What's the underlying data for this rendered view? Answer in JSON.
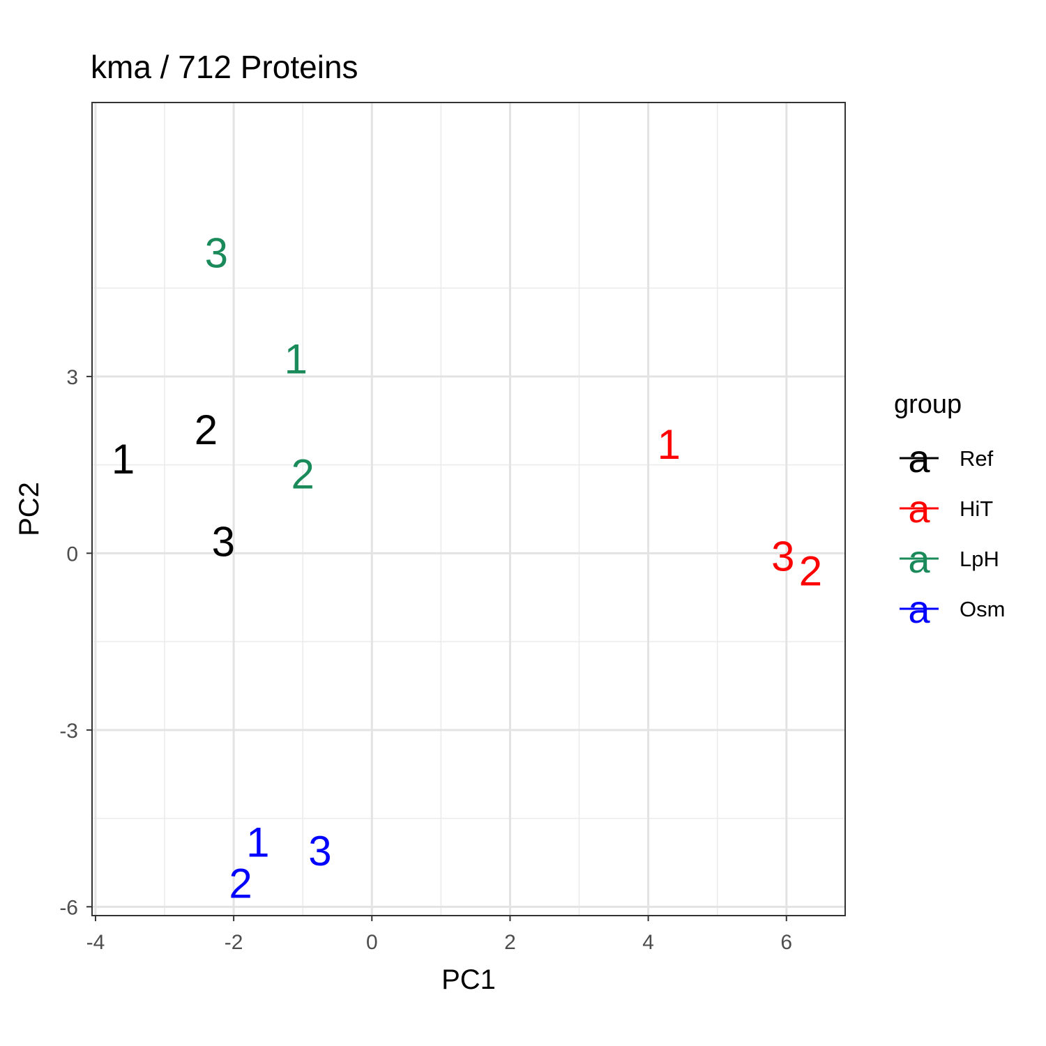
{
  "chart_data": {
    "type": "scatter",
    "title": "kma /  712  Proteins",
    "xlabel": "PC1",
    "ylabel": "PC2",
    "xlim": [
      -4.05,
      6.85
    ],
    "ylim": [
      -6.15,
      7.65
    ],
    "x_major_ticks": [
      -4,
      -2,
      0,
      2,
      4,
      6
    ],
    "x_minor_ticks": [
      -3,
      -1,
      1,
      3,
      5
    ],
    "y_major_ticks": [
      -6,
      -3,
      0,
      3
    ],
    "y_minor_ticks": [
      -4.5,
      -1.5,
      1.5,
      4.5
    ],
    "x_tick_labels": [
      "-4",
      "-2",
      "0",
      "2",
      "4",
      "6"
    ],
    "y_tick_labels": [
      "-6",
      "-3",
      "0",
      "3"
    ],
    "grid": true,
    "legend": {
      "title": "group",
      "position": "right",
      "key_glyph": "a"
    },
    "series": [
      {
        "name": "Ref",
        "color": "#000000",
        "points": [
          {
            "label": "1",
            "x": -3.6,
            "y": 1.6
          },
          {
            "label": "2",
            "x": -2.4,
            "y": 2.1
          },
          {
            "label": "3",
            "x": -2.15,
            "y": 0.2
          }
        ]
      },
      {
        "name": "HiT",
        "color": "#ff0000",
        "points": [
          {
            "label": "1",
            "x": 4.3,
            "y": 1.85
          },
          {
            "label": "3",
            "x": 5.95,
            "y": -0.05
          },
          {
            "label": "2",
            "x": 6.35,
            "y": -0.3
          }
        ]
      },
      {
        "name": "LpH",
        "color": "#1b8a5a",
        "points": [
          {
            "label": "3",
            "x": -2.25,
            "y": 5.1
          },
          {
            "label": "1",
            "x": -1.1,
            "y": 3.3
          },
          {
            "label": "2",
            "x": -1.0,
            "y": 1.35
          }
        ]
      },
      {
        "name": "Osm",
        "color": "#0000ff",
        "points": [
          {
            "label": "1",
            "x": -1.65,
            "y": -4.9
          },
          {
            "label": "3",
            "x": -0.75,
            "y": -5.05
          },
          {
            "label": "2",
            "x": -1.9,
            "y": -5.6
          }
        ]
      }
    ]
  }
}
